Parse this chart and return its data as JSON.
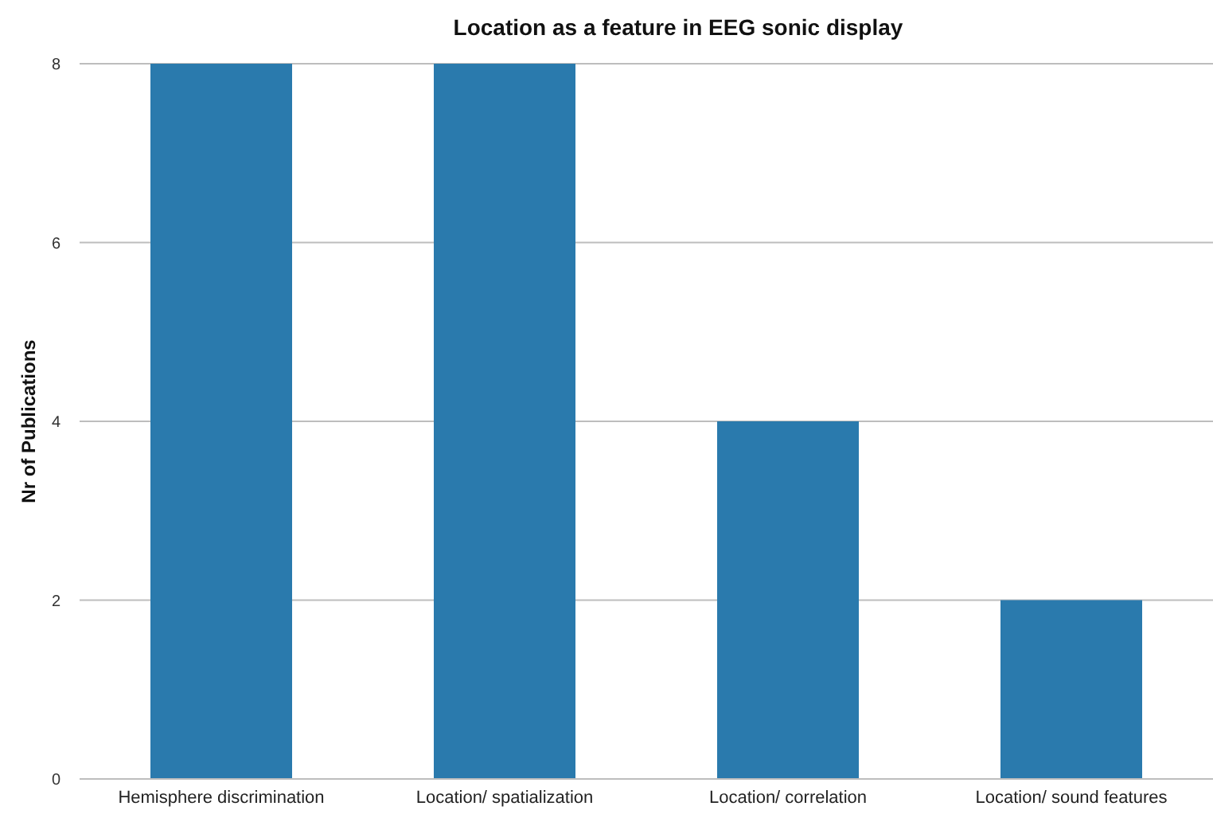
{
  "chart_data": {
    "type": "bar",
    "title": "Location as a feature in EEG sonic display",
    "ylabel": "Nr of Publications",
    "categories": [
      "Hemisphere discrimination",
      "Location/ spatialization",
      "Location/ correlation",
      "Location/ sound features"
    ],
    "values": [
      8,
      8,
      4,
      2
    ],
    "color": "#2a7aad",
    "ylim": [
      0,
      8
    ],
    "yticks": [
      0,
      2,
      4,
      6,
      8
    ],
    "grid": "y"
  }
}
